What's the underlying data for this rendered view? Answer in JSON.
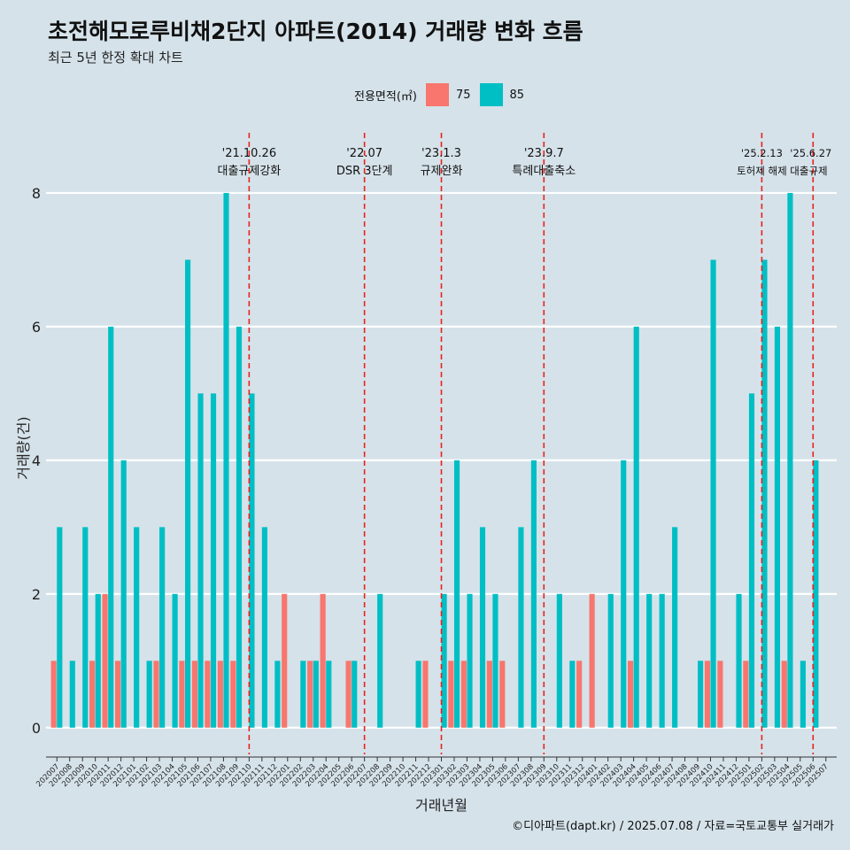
{
  "header": {
    "title": "초전해모로루비채2단지 아파트(2014) 거래량 변화 흐름",
    "subtitle": "최근 5년 한정 확대 차트"
  },
  "legend": {
    "title": "전용면적(㎡)",
    "items": [
      {
        "label": "75",
        "color": "#f8766d"
      },
      {
        "label": "85",
        "color": "#00bfc4"
      }
    ]
  },
  "caption": "©디아파트(dapt.kr) / 2025.07.08 / 자료=국토교통부 실거래가",
  "chart_data": {
    "type": "bar",
    "xlabel": "거래년월",
    "ylabel": "거래량(건)",
    "ylim": [
      -0.4,
      8.9
    ],
    "yticks": [
      0,
      2,
      4,
      6,
      8
    ],
    "grid": true,
    "categories": [
      "202007",
      "202008",
      "202009",
      "202010",
      "202011",
      "202012",
      "202101",
      "202102",
      "202103",
      "202104",
      "202105",
      "202106",
      "202107",
      "202108",
      "202109",
      "202110",
      "202111",
      "202112",
      "202201",
      "202202",
      "202203",
      "202204",
      "202205",
      "202206",
      "202207",
      "202208",
      "202209",
      "202210",
      "202211",
      "202212",
      "202301",
      "202302",
      "202303",
      "202304",
      "202305",
      "202306",
      "202307",
      "202308",
      "202309",
      "202310",
      "202311",
      "202312",
      "202401",
      "202402",
      "202403",
      "202404",
      "202405",
      "202406",
      "202407",
      "202408",
      "202409",
      "202410",
      "202411",
      "202412",
      "202501",
      "202502",
      "202503",
      "202504",
      "202505",
      "202506",
      "202507"
    ],
    "series": [
      {
        "name": "75",
        "color": "#f8766d",
        "values": [
          1,
          0,
          0,
          1,
          2,
          1,
          0,
          0,
          1,
          0,
          1,
          1,
          1,
          1,
          1,
          0,
          0,
          0,
          2,
          0,
          1,
          2,
          0,
          1,
          0,
          0,
          0,
          0,
          0,
          1,
          0,
          1,
          1,
          0,
          1,
          1,
          0,
          0,
          0,
          0,
          0,
          1,
          2,
          0,
          0,
          1,
          0,
          0,
          0,
          0,
          0,
          1,
          1,
          0,
          1,
          0,
          0,
          1,
          0,
          0,
          0
        ]
      },
      {
        "name": "85",
        "color": "#00bfc4",
        "values": [
          3,
          1,
          3,
          2,
          6,
          4,
          3,
          1,
          3,
          2,
          7,
          5,
          5,
          8,
          6,
          5,
          3,
          1,
          0,
          1,
          1,
          1,
          0,
          1,
          0,
          2,
          0,
          0,
          1,
          0,
          2,
          4,
          2,
          3,
          2,
          0,
          3,
          4,
          0,
          2,
          1,
          0,
          0,
          2,
          4,
          6,
          2,
          2,
          3,
          0,
          1,
          7,
          0,
          2,
          5,
          7,
          6,
          8,
          1,
          4,
          0
        ]
      }
    ],
    "events": [
      {
        "category": "202110",
        "date": "'21.10.26",
        "label": "대출규제강화"
      },
      {
        "category": "202207",
        "date": "'22.07",
        "label": "DSR 3단계"
      },
      {
        "category": "202301",
        "date": "'23.1.3",
        "label": "규제완화"
      },
      {
        "category": "202309",
        "date": "'23.9.7",
        "label": "특례대출축소"
      },
      {
        "category": "202502",
        "date": "'25.2.13",
        "label": "토허제 해제"
      },
      {
        "category": "202506",
        "date": "'25.6.27",
        "label": "대출규제"
      }
    ]
  }
}
